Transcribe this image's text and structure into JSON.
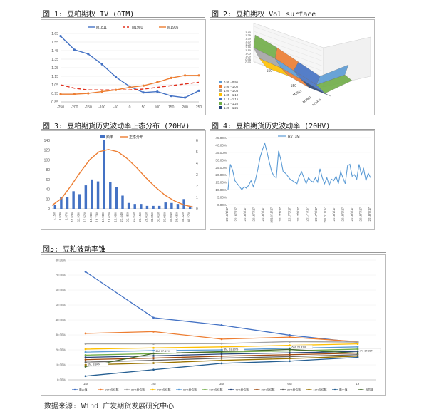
{
  "panel_titles": {
    "fig1": "图 1: 豆粕期权 IV (OTM)",
    "fig2": "图 2: 豆粕期权 Vol surface",
    "fig3": "图 3: 豆粕期货历史波动率正态分布 (20HV)",
    "fig4": "图 4: 豆粕期货历史波动率 (20HV)",
    "fig5": "图5: 豆粕波动率锥"
  },
  "source": "数据来源: Wind 广发期货发展研究中心",
  "colors": {
    "M1811": "#4472c4",
    "M1901": "#e0301e",
    "M1905": "#ed7d31",
    "hist": "#4472c4",
    "normal": "#ed7d31",
    "rv": "#5b9bd5"
  },
  "chart_data": [
    {
      "type": "line",
      "title": "",
      "x": [
        -250,
        -200,
        -150,
        -100,
        -50,
        0,
        50,
        100,
        150,
        200,
        250
      ],
      "xticks": [
        "-250",
        "-200",
        "-150",
        "-100",
        "-50",
        "0",
        "50",
        "100",
        "150",
        "200",
        "250"
      ],
      "ylim": [
        0.85,
        1.7
      ],
      "yticks": [
        "0.85",
        "0.95",
        "1.05",
        "1.15",
        "1.25",
        "1.35",
        "1.45",
        "1.55",
        "1.65"
      ],
      "legend": "top",
      "series": [
        {
          "name": "M1811",
          "style": "solid",
          "values": [
            1.62,
            1.46,
            1.41,
            1.29,
            1.14,
            1.03,
            0.96,
            0.97,
            0.92,
            0.9,
            0.98
          ]
        },
        {
          "name": "M1901",
          "style": "dashed",
          "values": [
            1.05,
            1.01,
            0.99,
            0.99,
            0.99,
            0.99,
            1.0,
            1.02,
            1.04,
            1.06,
            1.08
          ]
        },
        {
          "name": "M1905",
          "style": "solid",
          "values": [
            0.94,
            0.94,
            0.95,
            0.97,
            0.99,
            1.02,
            1.04,
            1.08,
            1.13,
            1.16,
            1.16
          ]
        }
      ]
    },
    {
      "type": "heatmap",
      "title": "",
      "axis_labels": [
        "M1811",
        "M1901",
        "M1905"
      ],
      "x_ticks": [
        "-150",
        "-150"
      ],
      "z_ticks": [
        "1.40",
        "1.35",
        "1.30",
        "1.25",
        "1.20",
        "1.15",
        "1.10",
        "1.05",
        "1.00",
        "0.95",
        "0.90"
      ],
      "legend_title": "",
      "legend": [
        {
          "label": "0.90 - 0.95",
          "color": "#5b9bd5"
        },
        {
          "label": "0.95 - 1.00",
          "color": "#ed7d31"
        },
        {
          "label": "1.00 - 1.05",
          "color": "#a5a5a5"
        },
        {
          "label": "1.05 - 1.10",
          "color": "#ffc000"
        },
        {
          "label": "1.10 - 1.15",
          "color": "#4472c4"
        },
        {
          "label": "1.15 - 1.20",
          "color": "#70ad47"
        },
        {
          "label": "1.20 - 1.25",
          "color": "#264478"
        }
      ]
    },
    {
      "type": "bar",
      "title": "",
      "legend": [
        "频率",
        "正态分布"
      ],
      "categories": [
        "7.15%",
        "8.93%",
        "9.97%",
        "10.93%",
        "11.93%",
        "13.52%",
        "15.20%",
        "16.73%",
        "17.90%",
        "18.62%",
        "19.98%",
        "21.44%",
        "22.45%",
        "23.91%",
        "26.15%",
        "28.81%",
        "30.05%",
        "31.81%",
        "33.09%",
        "35.04%",
        "36.65%",
        "38.32%",
        "40.27%"
      ],
      "values": [
        8,
        24,
        24,
        36,
        30,
        48,
        60,
        56,
        140,
        55,
        45,
        27,
        12,
        10,
        10,
        6,
        6,
        6,
        13,
        12,
        10,
        20,
        6
      ],
      "ylim_left": [
        0,
        140
      ],
      "yticks_left": [
        "0",
        "20",
        "40",
        "60",
        "80",
        "100",
        "120",
        "140"
      ],
      "ylim_right": [
        0,
        6
      ],
      "yticks_right": [
        "0",
        "1",
        "2",
        "3",
        "4",
        "5",
        "6"
      ],
      "normal_curve": [
        0.3,
        0.9,
        2.0,
        3.2,
        4.3,
        5.0,
        5.2,
        5.0,
        4.4,
        3.6,
        2.7,
        1.9,
        1.2,
        0.7,
        0.35,
        0.15
      ]
    },
    {
      "type": "line",
      "title": "",
      "legend": "top",
      "series_name": "RV_1M",
      "ylim": [
        0,
        0.45
      ],
      "yticks": [
        "0.00%",
        "5.00%",
        "10.00%",
        "15.00%",
        "20.00%",
        "25.00%",
        "30.00%",
        "35.00%",
        "40.00%",
        "45.00%"
      ],
      "xticks": [
        "2016/1/17",
        "2016/3/17",
        "2016/5/17",
        "2016/7/17",
        "2016/9/17",
        "2016/11/17",
        "2017/1/17",
        "2017/3/17",
        "2017/5/17",
        "2017/7/17",
        "2017/9/17",
        "2017/11/17",
        "2018/1/17",
        "2018/3/17",
        "2018/5/17",
        "2018/7/17",
        "2018/9/17"
      ],
      "values": [
        0.1,
        0.27,
        0.23,
        0.16,
        0.14,
        0.12,
        0.1,
        0.12,
        0.11,
        0.13,
        0.16,
        0.12,
        0.17,
        0.24,
        0.32,
        0.37,
        0.41,
        0.35,
        0.28,
        0.22,
        0.19,
        0.18,
        0.36,
        0.3,
        0.22,
        0.21,
        0.19,
        0.17,
        0.16,
        0.15,
        0.14,
        0.19,
        0.22,
        0.18,
        0.14,
        0.18,
        0.16,
        0.15,
        0.18,
        0.15,
        0.24,
        0.18,
        0.14,
        0.18,
        0.13,
        0.17,
        0.16,
        0.19,
        0.14,
        0.22,
        0.18,
        0.14,
        0.26,
        0.27,
        0.19,
        0.2,
        0.17,
        0.27,
        0.2,
        0.24,
        0.16,
        0.21,
        0.18
      ]
    },
    {
      "type": "line",
      "title": "",
      "x": [
        "1M",
        "2M",
        "3M",
        "6M",
        "1Y"
      ],
      "ylim": [
        0,
        0.8
      ],
      "yticks": [
        "0.00%",
        "10.00%",
        "20.00%",
        "30.00%",
        "40.00%",
        "50.00%",
        "60.00%",
        "70.00%",
        "80.00%"
      ],
      "legend": "bottom",
      "series": [
        {
          "name": "最大值",
          "color": "#4472c4",
          "values": [
            0.722,
            0.415,
            0.365,
            0.298,
            0.25
          ]
        },
        {
          "name": "90%分位数",
          "color": "#ed7d31",
          "values": [
            0.31,
            0.322,
            0.272,
            0.285,
            0.255
          ]
        },
        {
          "name": "80%分位数",
          "color": "#a5a5a5",
          "values": [
            0.24,
            0.24,
            0.242,
            0.255,
            0.252
          ]
        },
        {
          "name": "70%分位数",
          "color": "#ffc000",
          "values": [
            0.205,
            0.213,
            0.22,
            0.23,
            0.24
          ]
        },
        {
          "name": "60%分位数",
          "color": "#5b9bd5",
          "values": [
            0.185,
            0.195,
            0.2,
            0.21,
            0.22
          ]
        },
        {
          "name": "50%分位数",
          "color": "#70ad47",
          "values": [
            0.165,
            0.175,
            0.185,
            0.193,
            0.205
          ]
        },
        {
          "name": "40%分位数",
          "color": "#264478",
          "values": [
            0.15,
            0.16,
            0.172,
            0.18,
            0.19
          ]
        },
        {
          "name": "30%分位数",
          "color": "#9e480e",
          "values": [
            0.135,
            0.145,
            0.158,
            0.168,
            0.178
          ]
        },
        {
          "name": "20%分位数",
          "color": "#636363",
          "values": [
            0.118,
            0.13,
            0.145,
            0.155,
            0.168
          ]
        },
        {
          "name": "10%分位数",
          "color": "#997300",
          "values": [
            0.1,
            0.112,
            0.13,
            0.142,
            0.158
          ]
        },
        {
          "name": "最小值",
          "color": "#255e91",
          "values": [
            0.025,
            0.068,
            0.11,
            0.125,
            0.15
          ]
        },
        {
          "name": "当前值",
          "color": "#43682b",
          "values": [
            0.088,
            0.176,
            0.188,
            0.203,
            0.178
          ]
        }
      ],
      "data_labels": [
        "1M, 8.84%",
        "2M, 17.61%",
        "3M, 18.80%",
        "6M, 20.31%",
        "1Y, 17.88%"
      ]
    }
  ]
}
